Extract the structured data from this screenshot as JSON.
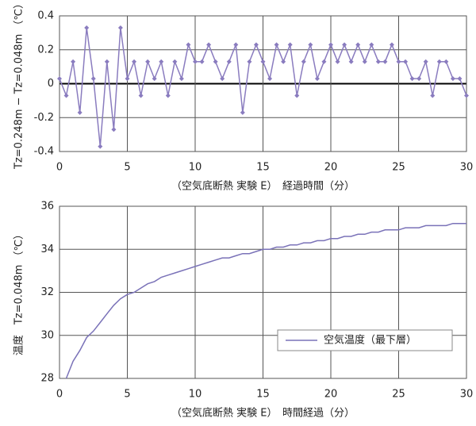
{
  "chart_data": [
    {
      "type": "line",
      "y_label": "Tz=0.248m − Tz=0.048m （℃）",
      "x_label": "（空気底断熱 実験 E）　経過時間（分）",
      "x": [
        0,
        0.5,
        1,
        1.5,
        2,
        2.5,
        3,
        3.5,
        4,
        4.5,
        5,
        5.5,
        6,
        6.5,
        7,
        7.5,
        8,
        8.5,
        9,
        9.5,
        10,
        10.5,
        11,
        11.5,
        12,
        12.5,
        13,
        13.5,
        14,
        14.5,
        15,
        15.5,
        16,
        16.5,
        17,
        17.5,
        18,
        18.5,
        19,
        19.5,
        20,
        20.5,
        21,
        21.5,
        22,
        22.5,
        23,
        23.5,
        24,
        24.5,
        25,
        25.5,
        26,
        26.5,
        27,
        27.5,
        28,
        28.5,
        29,
        29.5,
        30
      ],
      "series": [
        {
          "color": "#8a7cbf",
          "values": [
            0.03,
            -0.07,
            0.13,
            -0.17,
            0.33,
            0.03,
            -0.37,
            0.13,
            -0.27,
            0.33,
            0.03,
            0.13,
            -0.07,
            0.13,
            0.03,
            0.13,
            -0.07,
            0.13,
            0.03,
            0.23,
            0.13,
            0.13,
            0.23,
            0.13,
            0.03,
            0.13,
            0.23,
            -0.17,
            0.13,
            0.23,
            0.13,
            0.03,
            0.23,
            0.13,
            0.23,
            -0.07,
            0.13,
            0.23,
            0.03,
            0.13,
            0.23,
            0.13,
            0.23,
            0.13,
            0.23,
            0.13,
            0.23,
            0.13,
            0.13,
            0.23,
            0.13,
            0.13,
            0.03,
            0.03,
            0.13,
            -0.07,
            0.13,
            0.13,
            0.03,
            0.03,
            -0.07
          ]
        }
      ],
      "markers": true,
      "xlim": [
        0,
        30
      ],
      "xticks": [
        0,
        5,
        10,
        15,
        20,
        25,
        30
      ],
      "ylim": [
        -0.4,
        0.4
      ],
      "yticks": [
        -0.4,
        -0.2,
        0,
        0.2,
        0.4
      ],
      "grid": true
    },
    {
      "type": "line",
      "y_label": "温度　Tz=0.048m （℃）",
      "x_label": "（空気底断熱 実験 E）　時間経過（分）",
      "x": [
        0.5,
        1,
        1.5,
        2,
        2.5,
        3,
        3.5,
        4,
        4.5,
        5,
        5.5,
        6,
        6.5,
        7,
        7.5,
        8,
        8.5,
        9,
        9.5,
        10,
        10.5,
        11,
        11.5,
        12,
        12.5,
        13,
        13.5,
        14,
        14.5,
        15,
        15.5,
        16,
        16.5,
        17,
        17.5,
        18,
        18.5,
        19,
        19.5,
        20,
        20.5,
        21,
        21.5,
        22,
        22.5,
        23,
        23.5,
        24,
        24.5,
        25,
        25.5,
        26,
        26.5,
        27,
        27.5,
        28,
        28.5,
        29,
        29.5,
        30
      ],
      "series": [
        {
          "name": "空気温度（最下層）",
          "color": "#7a72b8",
          "values": [
            28.0,
            28.8,
            29.3,
            29.9,
            30.2,
            30.6,
            31.0,
            31.4,
            31.7,
            31.9,
            32.0,
            32.2,
            32.4,
            32.5,
            32.7,
            32.8,
            32.9,
            33.0,
            33.1,
            33.2,
            33.3,
            33.4,
            33.5,
            33.6,
            33.6,
            33.7,
            33.8,
            33.8,
            33.9,
            34.0,
            34.0,
            34.1,
            34.1,
            34.2,
            34.2,
            34.3,
            34.3,
            34.4,
            34.4,
            34.5,
            34.5,
            34.6,
            34.6,
            34.7,
            34.7,
            34.8,
            34.8,
            34.9,
            34.9,
            34.9,
            35.0,
            35.0,
            35.0,
            35.1,
            35.1,
            35.1,
            35.1,
            35.2,
            35.2,
            35.2
          ]
        }
      ],
      "markers": false,
      "legend": "lower right",
      "xlim": [
        0,
        30
      ],
      "xticks": [
        0,
        5,
        10,
        15,
        20,
        25,
        30
      ],
      "ylim": [
        28,
        36
      ],
      "yticks": [
        28,
        30,
        32,
        34,
        36
      ],
      "grid": true
    }
  ]
}
